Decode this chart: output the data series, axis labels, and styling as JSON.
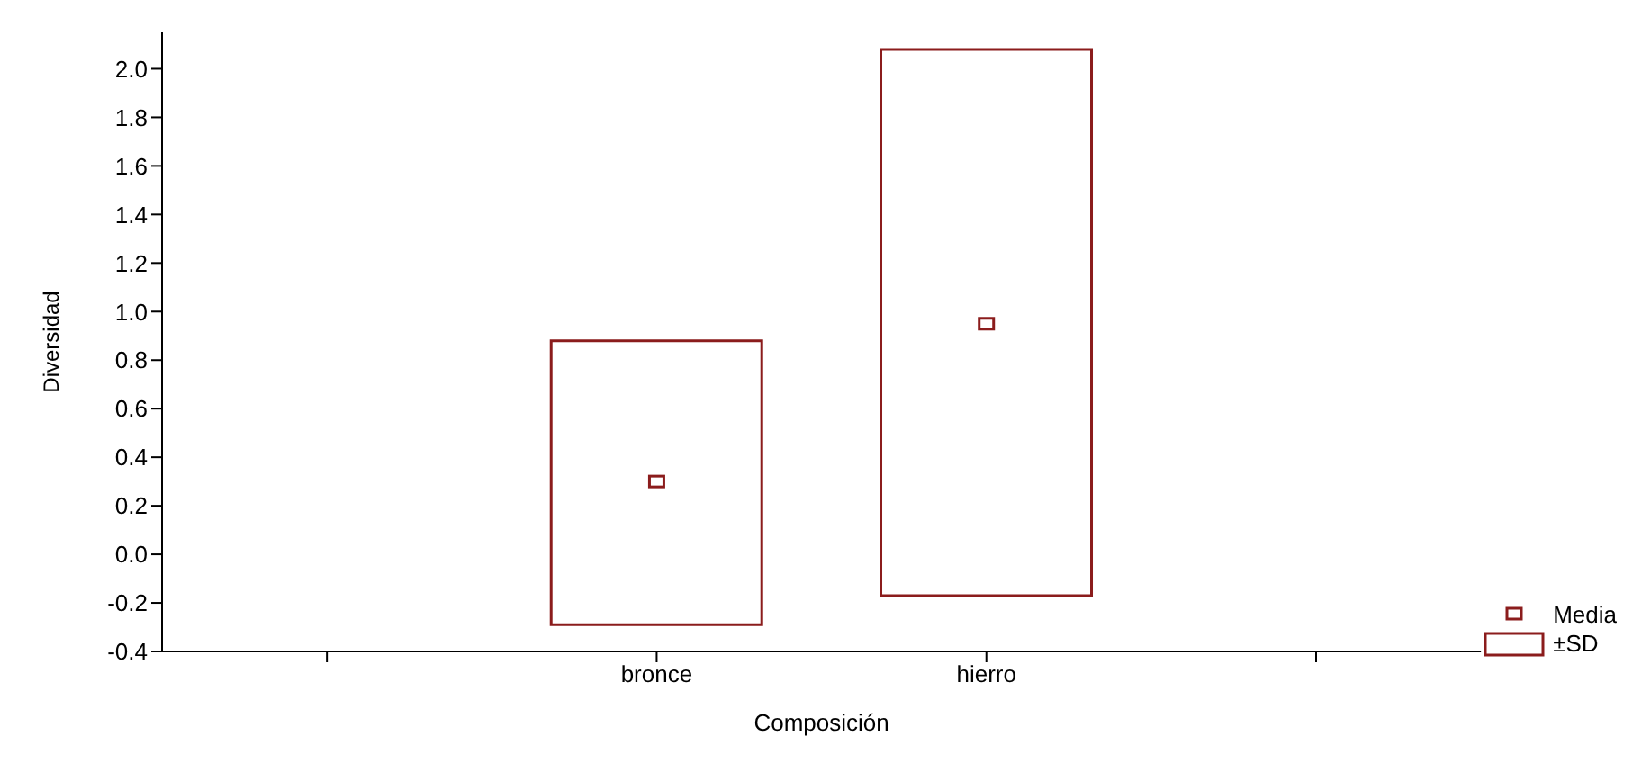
{
  "chart_data": {
    "type": "bar",
    "xlabel": "Composición",
    "ylabel": "Diversidad",
    "categories": [
      null,
      "bronce",
      "hierro",
      null
    ],
    "series": [
      {
        "name": "Media",
        "type": "scatter",
        "marker": "square",
        "color": "#8b1c1c",
        "values": [
          null,
          0.3,
          0.95,
          null
        ]
      },
      {
        "name": "±SD",
        "color": "#8b1c1c",
        "base": [
          null,
          -0.29,
          -0.17,
          null
        ],
        "values": [
          null,
          1.17,
          2.25,
          null
        ]
      }
    ],
    "ylim": [
      -0.4,
      2.15
    ],
    "yticks": [
      {
        "value": -0.4,
        "label": "-0.4"
      },
      {
        "value": -0.2,
        "label": "-0.2"
      },
      {
        "value": 0,
        "label": "0.0"
      },
      {
        "value": 0.2,
        "label": "0.2"
      },
      {
        "value": 0.4,
        "label": "0.4"
      },
      {
        "value": 0.6,
        "label": "0.6"
      },
      {
        "value": 0.8,
        "label": "0.8"
      },
      {
        "value": 1,
        "label": "1.0"
      },
      {
        "value": 1.2,
        "label": "1.2"
      },
      {
        "value": 1.4,
        "label": "1.4"
      },
      {
        "value": 1.6,
        "label": "1.6"
      },
      {
        "value": 1.8,
        "label": "1.8"
      },
      {
        "value": 2,
        "label": "2.0"
      }
    ],
    "grid": false,
    "legend": "bottom right"
  }
}
